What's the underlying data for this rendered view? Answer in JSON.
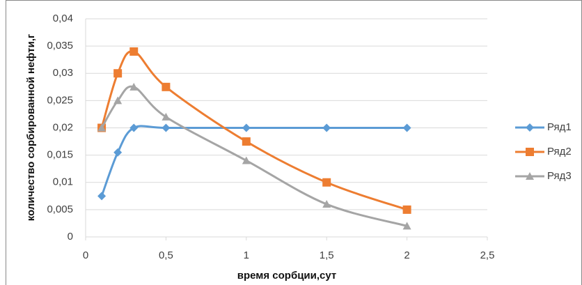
{
  "chart_data": {
    "type": "line",
    "x_label": "время сорбции,сут",
    "y_label": "количество сорбированной нефти,г",
    "x": [
      0.1,
      0.2,
      0.3,
      0.5,
      1,
      1.5,
      2
    ],
    "series": [
      {
        "name": "Ряд1",
        "color": "#5b9bd5",
        "marker": "diamond",
        "values": [
          0.0075,
          0.0155,
          0.02,
          0.02,
          0.02,
          0.02,
          0.02
        ]
      },
      {
        "name": "Ряд2",
        "color": "#ed7d31",
        "marker": "square",
        "values": [
          0.02,
          0.03,
          0.034,
          0.0275,
          0.0175,
          0.01,
          0.005
        ]
      },
      {
        "name": "Ряд3",
        "color": "#a5a5a5",
        "marker": "triangle",
        "values": [
          0.02,
          0.025,
          0.0275,
          0.022,
          0.014,
          0.006,
          0.002
        ]
      }
    ],
    "xlim": [
      0,
      2.5
    ],
    "xticks": [
      0,
      {
        "value": 0.5,
        "label": "0,5"
      },
      1,
      {
        "value": 1.5,
        "label": "1,5"
      },
      2,
      {
        "value": 2.5,
        "label": "2,5"
      }
    ],
    "ylim": [
      0,
      0.04
    ],
    "yticks": [
      0,
      {
        "value": 0.005,
        "label": "0,005"
      },
      {
        "value": 0.01,
        "label": "0,01"
      },
      {
        "value": 0.015,
        "label": "0,015"
      },
      {
        "value": 0.02,
        "label": "0,02"
      },
      {
        "value": 0.025,
        "label": "0,025"
      },
      {
        "value": 0.03,
        "label": "0,03"
      },
      {
        "value": 0.035,
        "label": "0,035"
      },
      {
        "value": 0.04,
        "label": "0,04"
      }
    ],
    "grid": true,
    "legend": "right"
  }
}
